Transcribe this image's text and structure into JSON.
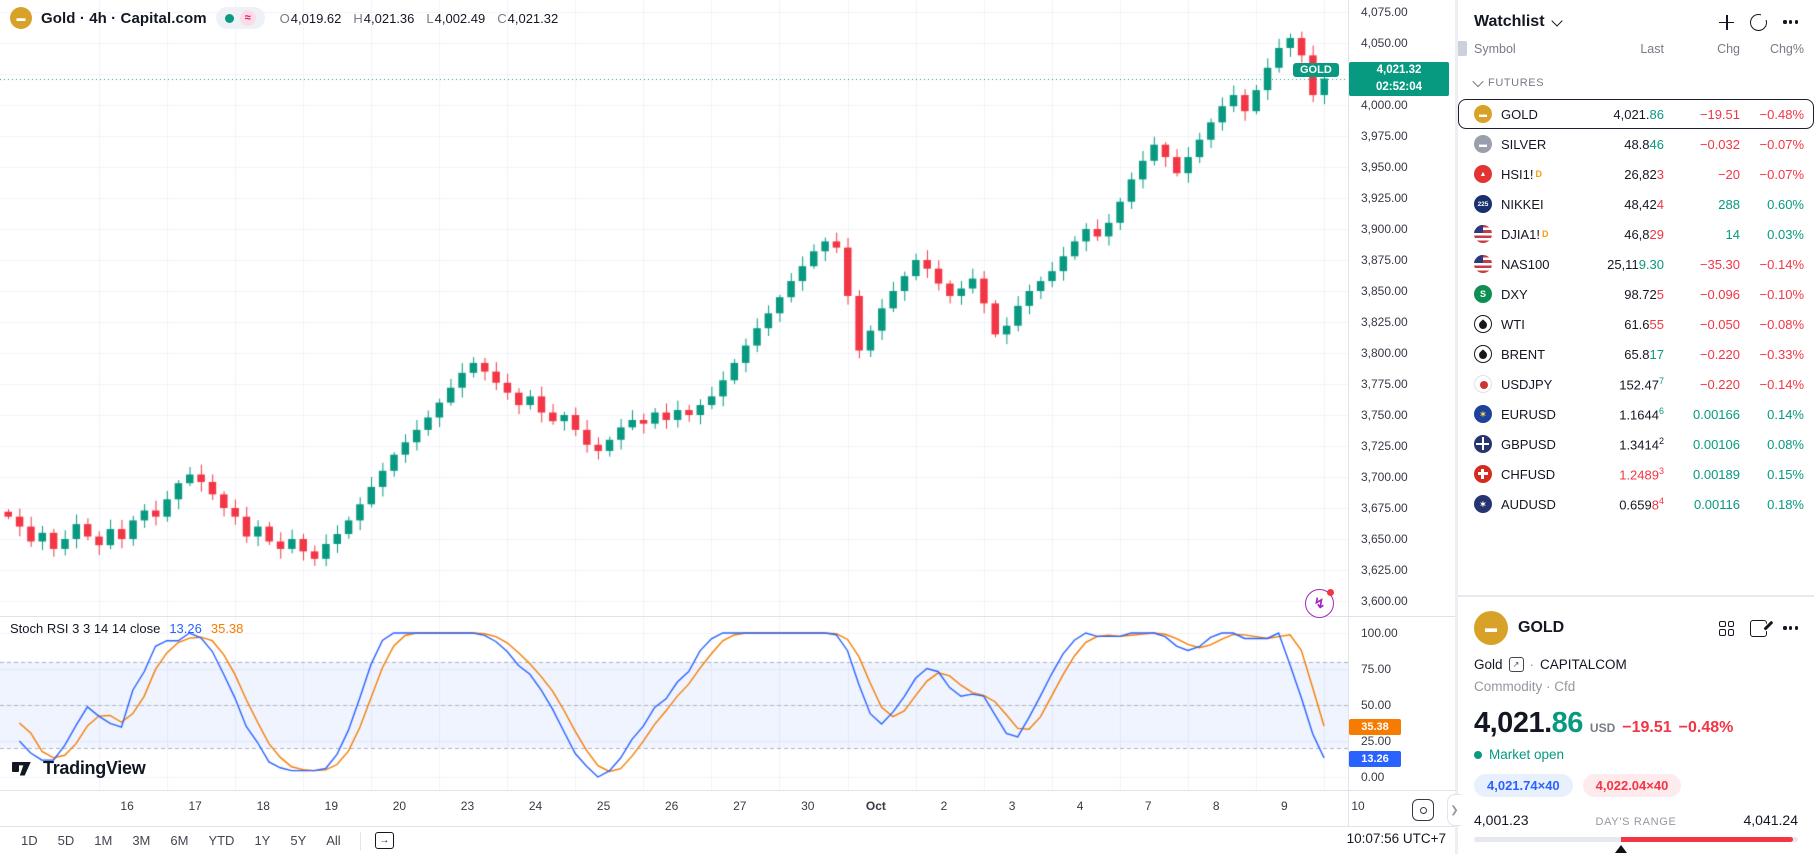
{
  "colors": {
    "up": "#089981",
    "down": "#f23645",
    "k_line": "#2962ff",
    "d_line": "#f57c00",
    "grid": "#f0f3fa",
    "band_fill": "rgba(41,98,255,0.07)",
    "accent_purple": "#a626c1",
    "current_price_label_bg": "#089981"
  },
  "legend": {
    "symbol_title": "Gold · 4h · Capital.com",
    "status_wave": "≈",
    "ohlc": {
      "o_label": "O",
      "o": "4,019.62",
      "h_label": "H",
      "h": "4,021.36",
      "l_label": "L",
      "l": "4,002.49",
      "c_label": "C",
      "c": "4,021.32"
    }
  },
  "price_axis": {
    "ticks": [
      {
        "label": "4,075.00",
        "value": 4075
      },
      {
        "label": "4,050.00",
        "value": 4050
      },
      {
        "label": "4,025.00",
        "value": 4025
      },
      {
        "label": "4,000.00",
        "value": 4000
      },
      {
        "label": "3,975.00",
        "value": 3975
      },
      {
        "label": "3,950.00",
        "value": 3950
      },
      {
        "label": "3,925.00",
        "value": 3925
      },
      {
        "label": "3,900.00",
        "value": 3900
      },
      {
        "label": "3,875.00",
        "value": 3875
      },
      {
        "label": "3,850.00",
        "value": 3850
      },
      {
        "label": "3,825.00",
        "value": 3825
      },
      {
        "label": "3,800.00",
        "value": 3800
      },
      {
        "label": "3,775.00",
        "value": 3775
      },
      {
        "label": "3,750.00",
        "value": 3750
      },
      {
        "label": "3,725.00",
        "value": 3725
      },
      {
        "label": "3,700.00",
        "value": 3700
      },
      {
        "label": "3,675.00",
        "value": 3675
      },
      {
        "label": "3,650.00",
        "value": 3650
      },
      {
        "label": "3,625.00",
        "value": 3625
      },
      {
        "label": "3,600.00",
        "value": 3600
      }
    ],
    "current": {
      "tag": "GOLD",
      "price": "4,021.32",
      "countdown": "02:52:04"
    }
  },
  "indicator": {
    "legend_name": "Stoch RSI 3 3 14 14 close",
    "k_value": "13.26",
    "d_value": "35.38",
    "ticks": [
      {
        "label": "100.00",
        "value": 100
      },
      {
        "label": "75.00",
        "value": 75
      },
      {
        "label": "50.00",
        "value": 50
      },
      {
        "label": "25.00",
        "value": 25
      },
      {
        "label": "0.00",
        "value": 0
      }
    ],
    "badges": [
      {
        "label": "35.38",
        "bg": "#f57c00",
        "value": 35.38
      },
      {
        "label": "13.26",
        "bg": "#2962ff",
        "value": 13.26
      }
    ]
  },
  "branding": {
    "logo_text": "TradingView"
  },
  "time_axis": {
    "labels": [
      "16",
      "17",
      "18",
      "19",
      "20",
      "23",
      "24",
      "25",
      "26",
      "27",
      "30",
      "Oct",
      "2",
      "3",
      "4",
      "7",
      "8",
      "9",
      "10"
    ],
    "month_label": "Oct"
  },
  "toolbar": {
    "ranges": [
      "1D",
      "5D",
      "1M",
      "3M",
      "6M",
      "YTD",
      "1Y",
      "5Y",
      "All"
    ],
    "clock": "10:07:56 UTC+7"
  },
  "watchlist": {
    "title": "Watchlist",
    "columns": [
      "Symbol",
      "Last",
      "Chg",
      "Chg%"
    ],
    "section": "FUTURES",
    "rows": [
      {
        "symbol": "GOLD",
        "badge": "",
        "icon": "ic-gold",
        "glyph": "▬",
        "last_main": "4,021.",
        "last_tick": "86",
        "last_sup": "",
        "tick_dir": "up",
        "main_dir": "flat",
        "chg": "−19.51",
        "chg_pct": "−0.48%",
        "dir": "down",
        "selected": true
      },
      {
        "symbol": "SILVER",
        "badge": "",
        "icon": "ic-silver",
        "glyph": "▬",
        "last_main": "48.8",
        "last_tick": "46",
        "last_sup": "",
        "tick_dir": "up",
        "main_dir": "flat",
        "chg": "−0.032",
        "chg_pct": "−0.07%",
        "dir": "down",
        "selected": false
      },
      {
        "symbol": "HSI1!",
        "badge": "D",
        "icon": "ic-hsi",
        "glyph": "▲",
        "last_main": "26,82",
        "last_tick": "3",
        "last_sup": "",
        "tick_dir": "down",
        "main_dir": "flat",
        "chg": "−20",
        "chg_pct": "−0.07%",
        "dir": "down",
        "selected": false
      },
      {
        "symbol": "NIKKEI",
        "badge": "",
        "icon": "ic-nikkei",
        "glyph": "225",
        "last_main": "48,42",
        "last_tick": "4",
        "last_sup": "",
        "tick_dir": "down",
        "main_dir": "flat",
        "chg": "288",
        "chg_pct": "0.60%",
        "dir": "up",
        "selected": false
      },
      {
        "symbol": "DJIA1!",
        "badge": "D",
        "icon": "ic-us",
        "glyph": "",
        "last_main": "46,8",
        "last_tick": "29",
        "last_sup": "",
        "tick_dir": "down",
        "main_dir": "flat",
        "chg": "14",
        "chg_pct": "0.03%",
        "dir": "up",
        "selected": false
      },
      {
        "symbol": "NAS100",
        "badge": "",
        "icon": "ic-us",
        "glyph": "",
        "last_main": "25,11",
        "last_tick": "9.30",
        "last_sup": "",
        "tick_dir": "up",
        "main_dir": "flat",
        "chg": "−35.30",
        "chg_pct": "−0.14%",
        "dir": "down",
        "selected": false
      },
      {
        "symbol": "DXY",
        "badge": "",
        "icon": "ic-dxy",
        "glyph": "S",
        "last_main": "98.72",
        "last_tick": "5",
        "last_sup": "",
        "tick_dir": "down",
        "main_dir": "flat",
        "chg": "−0.096",
        "chg_pct": "−0.10%",
        "dir": "down",
        "selected": false
      },
      {
        "symbol": "WTI",
        "badge": "",
        "icon": "ic-oil",
        "glyph": "",
        "last_main": "61.6",
        "last_tick": "55",
        "last_sup": "",
        "tick_dir": "down",
        "main_dir": "flat",
        "chg": "−0.050",
        "chg_pct": "−0.08%",
        "dir": "down",
        "selected": false
      },
      {
        "symbol": "BRENT",
        "badge": "",
        "icon": "ic-oil",
        "glyph": "",
        "last_main": "65.8",
        "last_tick": "17",
        "last_sup": "",
        "tick_dir": "up",
        "main_dir": "flat",
        "chg": "−0.220",
        "chg_pct": "−0.33%",
        "dir": "down",
        "selected": false
      },
      {
        "symbol": "USDJPY",
        "badge": "",
        "icon": "ic-usjp",
        "glyph": "",
        "last_main": "152.47",
        "last_tick": "",
        "last_sup": "7",
        "tick_dir": "up",
        "main_dir": "flat",
        "chg": "−0.220",
        "chg_pct": "−0.14%",
        "dir": "down",
        "selected": false
      },
      {
        "symbol": "EURUSD",
        "badge": "",
        "icon": "ic-eu",
        "glyph": "✶",
        "last_main": "1.1644",
        "last_tick": "",
        "last_sup": "6",
        "tick_dir": "up",
        "main_dir": "flat",
        "chg": "0.00166",
        "chg_pct": "0.14%",
        "dir": "up",
        "selected": false
      },
      {
        "symbol": "GBPUSD",
        "badge": "",
        "icon": "ic-gb",
        "glyph": "",
        "last_main": "1.3414",
        "last_tick": "",
        "last_sup": "2",
        "tick_dir": "flat",
        "main_dir": "flat",
        "chg": "0.00106",
        "chg_pct": "0.08%",
        "dir": "up",
        "selected": false
      },
      {
        "symbol": "CHFUSD",
        "badge": "",
        "icon": "ic-ch",
        "glyph": "",
        "last_main": "1.2489",
        "last_tick": "",
        "last_sup": "3",
        "tick_dir": "down",
        "main_dir": "down",
        "chg": "0.00189",
        "chg_pct": "0.15%",
        "dir": "up",
        "selected": false
      },
      {
        "symbol": "AUDUSD",
        "badge": "",
        "icon": "ic-au",
        "glyph": "✶",
        "last_main": "0.659",
        "last_tick": "8",
        "last_sup": "4",
        "tick_dir": "down",
        "main_dir": "flat",
        "chg": "0.00116",
        "chg_pct": "0.18%",
        "dir": "up",
        "selected": false
      }
    ]
  },
  "detail": {
    "symbol": "GOLD",
    "name": "Gold",
    "link_glyph": "↗",
    "bullet": "·",
    "exchange": "CAPITALCOM",
    "type_line": "Commodity · Cfd",
    "price_main": "4,021.",
    "price_tick": "86",
    "currency": "USD",
    "chg": "−19.51",
    "chg_pct": "−0.48%",
    "status": "Market open",
    "bid": "4,021.74×40",
    "ask": "4,022.04×40",
    "range_low": "4,001.23",
    "range_label": "DAY'S RANGE",
    "range_high": "4,041.24"
  },
  "chart_data": {
    "type": "candlestick",
    "symbol": "GOLD",
    "interval": "4h",
    "provider": "Capital.com",
    "title": "Gold · 4h · Capital.com",
    "ohlc_current": {
      "open": 4019.62,
      "high": 4021.36,
      "low": 4002.49,
      "close": 4021.32
    },
    "current_price": 4021.32,
    "price_axis_range": [
      3600,
      4075
    ],
    "candles_per_day": 6,
    "first_day_start_index": 8,
    "closes": [
      3668,
      3660,
      3648,
      3655,
      3642,
      3650,
      3662,
      3652,
      3645,
      3658,
      3650,
      3665,
      3673,
      3668,
      3682,
      3695,
      3702,
      3696,
      3686,
      3675,
      3668,
      3652,
      3660,
      3648,
      3642,
      3650,
      3640,
      3634,
      3646,
      3654,
      3665,
      3678,
      3692,
      3705,
      3718,
      3728,
      3738,
      3748,
      3760,
      3772,
      3784,
      3792,
      3785,
      3776,
      3768,
      3758,
      3765,
      3752,
      3745,
      3750,
      3738,
      3726,
      3721,
      3730,
      3740,
      3746,
      3743,
      3752,
      3746,
      3754,
      3750,
      3758,
      3765,
      3778,
      3792,
      3806,
      3820,
      3832,
      3845,
      3858,
      3870,
      3882,
      3890,
      3885,
      3846,
      3802,
      3818,
      3836,
      3850,
      3862,
      3875,
      3868,
      3856,
      3846,
      3852,
      3860,
      3840,
      3815,
      3822,
      3838,
      3850,
      3858,
      3866,
      3878,
      3890,
      3900,
      3894,
      3905,
      3922,
      3940,
      3955,
      3968,
      3958,
      3945,
      3958,
      3972,
      3986,
      3999,
      4008,
      3995,
      4012,
      4030,
      4046,
      4054,
      4040,
      4008,
      4021.32
    ],
    "indicator": {
      "type": "stoch_rsi",
      "k_smooth": 3,
      "d_smooth": 3,
      "rsi_length": 14,
      "stoch_length": 14,
      "source": "close",
      "k_last": 13.26,
      "d_last": 35.38,
      "upper_band": 80,
      "lower_band": 20,
      "mid": 50,
      "range": [
        0,
        100
      ]
    }
  }
}
